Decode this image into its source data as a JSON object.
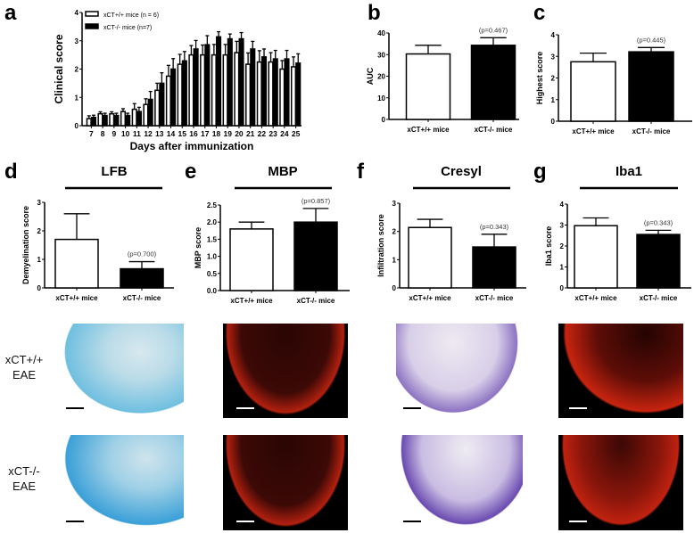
{
  "panels": {
    "a": "a",
    "b": "b",
    "c": "c",
    "d": "d",
    "e": "e",
    "f": "f",
    "g": "g"
  },
  "stain_titles": {
    "d": "LFB",
    "e": "MBP",
    "f": "Cresyl",
    "g": "Iba1"
  },
  "row_labels": [
    {
      "line1": "xCT+/+",
      "line2": "EAE"
    },
    {
      "line1": "xCT-/-",
      "line2": "EAE"
    }
  ],
  "image_panels": [
    "LFB",
    "MBP",
    "Cresyl",
    "Iba1"
  ],
  "colors": {
    "wt": "#ffffff",
    "ko": "#000000",
    "lfb": "#3aa0d8",
    "mbp": "#c8240f",
    "cresyl": "#7a5cb8",
    "iba1": "#c8240f"
  },
  "chart_data": [
    {
      "id": "a",
      "type": "bar",
      "xlabel": "Days after immunization",
      "ylabel": "Clinical score",
      "categories": [
        "7",
        "8",
        "9",
        "10",
        "11",
        "12",
        "13",
        "14",
        "15",
        "16",
        "17",
        "18",
        "19",
        "20",
        "21",
        "22",
        "23",
        "24",
        "25"
      ],
      "ylim": [
        0,
        4
      ],
      "yticks": [
        "0",
        "1",
        "2",
        "3",
        "4"
      ],
      "legend": "top-left",
      "series": [
        {
          "name": "xCT+/+ mice (n = 6)",
          "color": "#ffffff",
          "values": [
            0.25,
            0.42,
            0.42,
            0.5,
            0.58,
            0.75,
            1.25,
            1.75,
            2.17,
            2.5,
            2.5,
            2.5,
            2.5,
            2.58,
            2.17,
            2.25,
            2.25,
            2.0,
            2.08
          ],
          "errors": [
            0.1,
            0.07,
            0.07,
            0.1,
            0.2,
            0.2,
            0.25,
            0.38,
            0.35,
            0.33,
            0.35,
            0.37,
            0.37,
            0.4,
            0.4,
            0.4,
            0.33,
            0.3,
            0.35
          ]
        },
        {
          "name": "xCT-/- mice (n=7)",
          "color": "#000000",
          "values": [
            0.29,
            0.36,
            0.36,
            0.36,
            0.5,
            0.93,
            1.5,
            2.0,
            2.29,
            2.71,
            2.86,
            3.14,
            3.07,
            3.07,
            2.71,
            2.43,
            2.36,
            2.36,
            2.21
          ],
          "errors": [
            0.08,
            0.08,
            0.08,
            0.08,
            0.15,
            0.28,
            0.37,
            0.37,
            0.33,
            0.3,
            0.32,
            0.18,
            0.17,
            0.22,
            0.27,
            0.28,
            0.3,
            0.3,
            0.33
          ]
        }
      ]
    },
    {
      "id": "b",
      "type": "bar",
      "ylabel": "AUC",
      "categories": [
        "xCT+/+ mice",
        "xCT-/- mice"
      ],
      "values": [
        30.3,
        34.3
      ],
      "errors": [
        4.0,
        3.5
      ],
      "ylim": [
        0,
        40
      ],
      "yticks": [
        "0",
        "10",
        "20",
        "30",
        "40"
      ],
      "annotation": "(p=0.467)"
    },
    {
      "id": "c",
      "type": "bar",
      "ylabel": "Highest score",
      "categories": [
        "xCT+/+ mice",
        "xCT-/- mice"
      ],
      "values": [
        2.75,
        3.21
      ],
      "errors": [
        0.4,
        0.2
      ],
      "ylim": [
        0,
        4
      ],
      "yticks": [
        "0",
        "1",
        "2",
        "3",
        "4"
      ],
      "annotation": "(p=0.445)"
    },
    {
      "id": "d",
      "type": "bar",
      "ylabel": "Demyelination score",
      "categories": [
        "xCT+/+ mice",
        "xCT-/- mice"
      ],
      "values": [
        1.7,
        0.67
      ],
      "errors": [
        0.9,
        0.25
      ],
      "ylim": [
        0,
        3
      ],
      "yticks": [
        "0",
        "1",
        "2",
        "3"
      ],
      "annotation": "(p=0.700)"
    },
    {
      "id": "e",
      "type": "bar",
      "ylabel": "MBP score",
      "categories": [
        "xCT+/+ mice",
        "xCT-/- mice"
      ],
      "values": [
        1.8,
        2.0
      ],
      "errors": [
        0.2,
        0.4
      ],
      "ylim": [
        0,
        2.5
      ],
      "yticks": [
        "0.0",
        "0.5",
        "1.0",
        "1.5",
        "2.0",
        "2.5"
      ],
      "annotation": "(p=0.857)"
    },
    {
      "id": "f",
      "type": "bar",
      "ylabel": "Infiltration score",
      "categories": [
        "xCT+/+ mice",
        "xCT-/- mice"
      ],
      "values": [
        2.14,
        1.45
      ],
      "errors": [
        0.29,
        0.45
      ],
      "ylim": [
        0,
        3
      ],
      "yticks": [
        "0",
        "1",
        "2",
        "3"
      ],
      "annotation": "(p=0.343)"
    },
    {
      "id": "g",
      "type": "bar",
      "ylabel": "Iba1 score",
      "categories": [
        "xCT+/+ mice",
        "xCT-/- mice"
      ],
      "values": [
        2.97,
        2.55
      ],
      "errors": [
        0.37,
        0.2
      ],
      "ylim": [
        0,
        4
      ],
      "yticks": [
        "0",
        "1",
        "2",
        "3",
        "4"
      ],
      "annotation": "(p=0.343)"
    }
  ]
}
